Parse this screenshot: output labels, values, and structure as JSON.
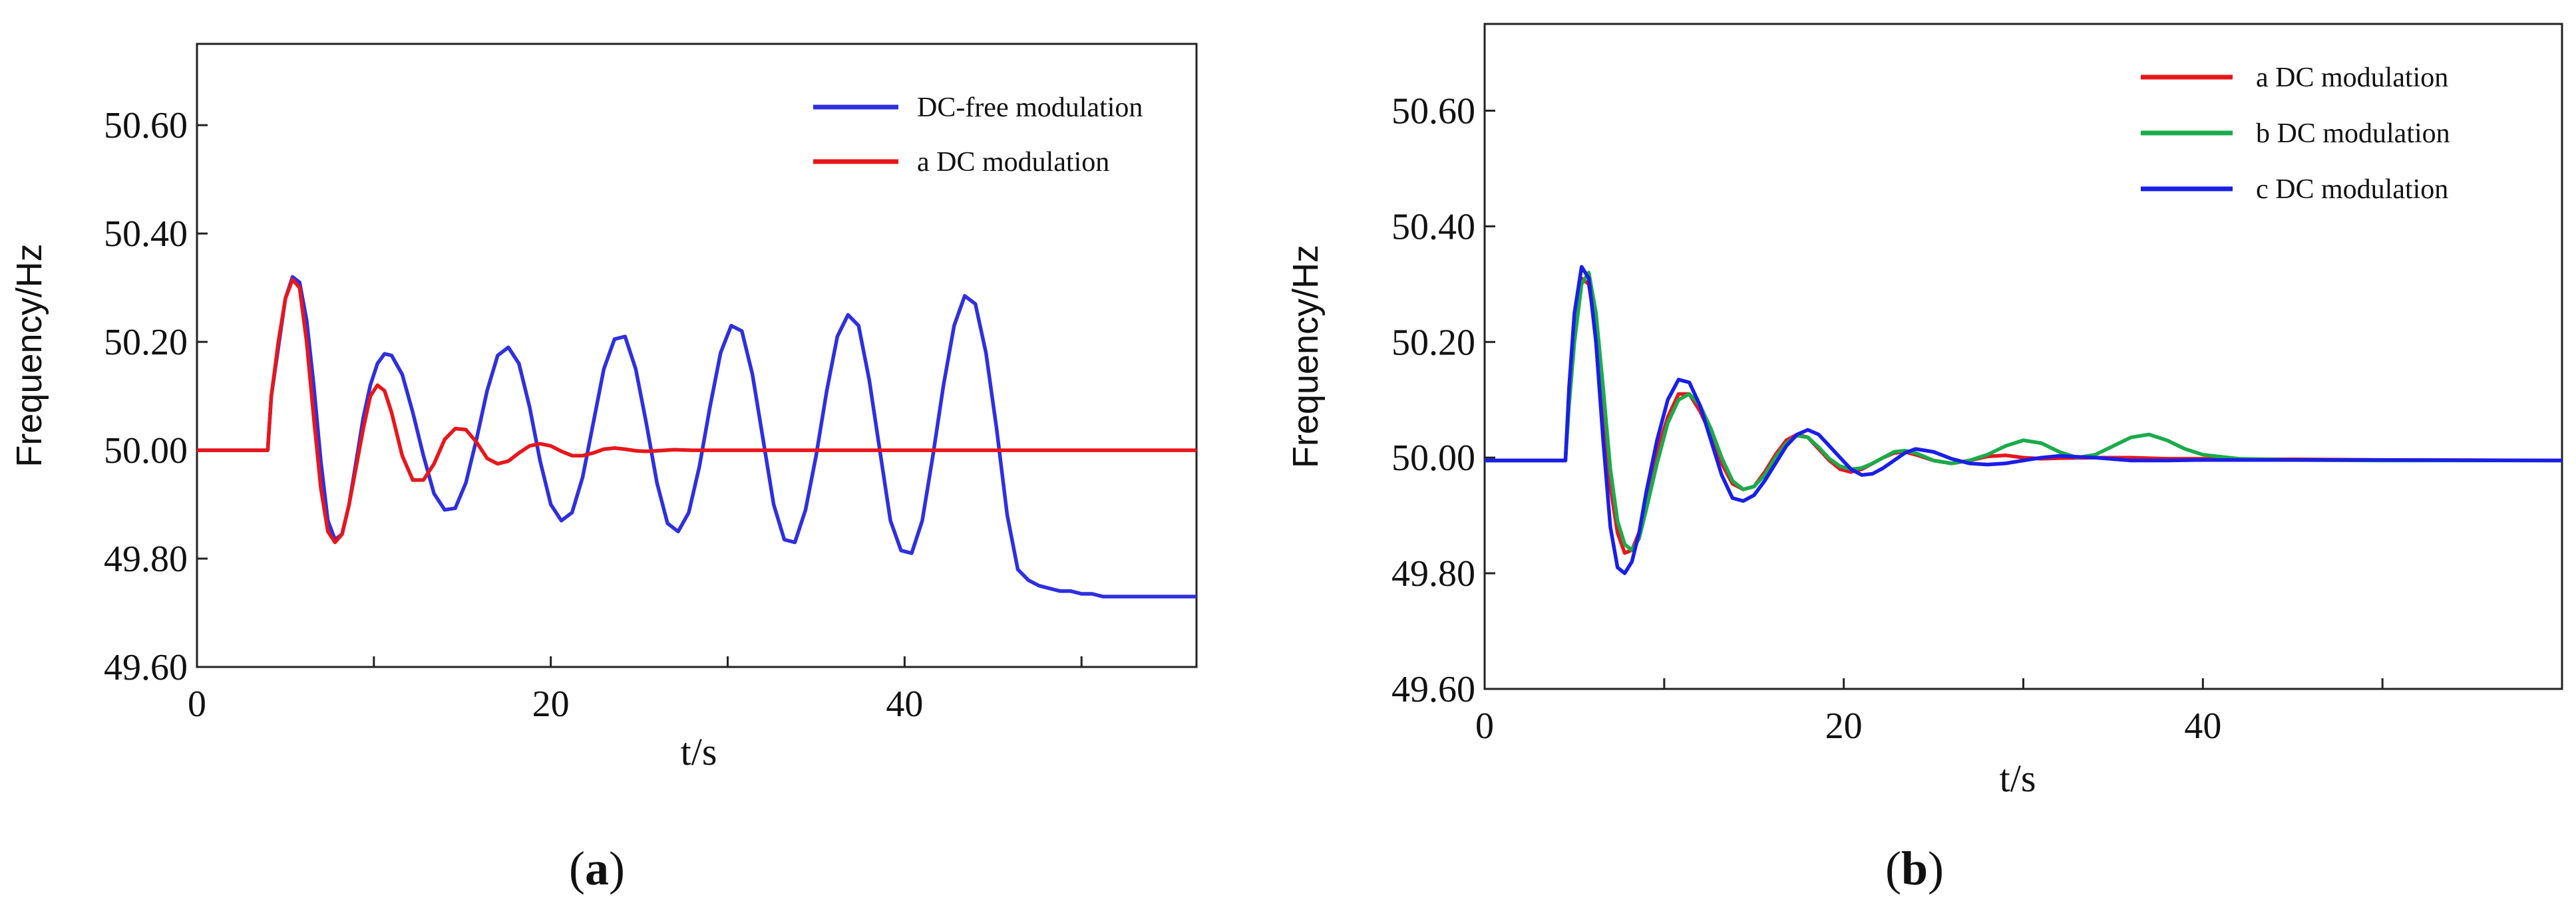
{
  "chart_data": [
    {
      "id": "a",
      "type": "line",
      "caption_open": "(",
      "caption_letter": "a",
      "caption_close": ")",
      "xlabel": "t/s",
      "ylabel": "Frequency/Hz",
      "xlim": [
        0,
        56.5
      ],
      "ylim": [
        49.6,
        50.75
      ],
      "xticks": [
        0,
        10,
        20,
        30,
        40,
        50
      ],
      "xtick_labels": [
        "0",
        "",
        "20",
        "",
        "40",
        ""
      ],
      "yticks": [
        49.6,
        49.8,
        50.0,
        50.2,
        50.4,
        50.6
      ],
      "ytick_labels": [
        "49.60",
        "49.80",
        "50.00",
        "50.20",
        "50.40",
        "50.60"
      ],
      "legend_position": "top-right",
      "series": [
        {
          "name": "DC-free modulation",
          "color": "#2f2fe0",
          "x": [
            0,
            4,
            4.2,
            4.6,
            5.0,
            5.4,
            5.8,
            6.2,
            6.6,
            7.0,
            7.4,
            7.8,
            8.2,
            8.6,
            9.0,
            9.4,
            9.8,
            10.2,
            10.6,
            11.0,
            11.6,
            12.2,
            12.8,
            13.4,
            14.0,
            14.6,
            15.2,
            15.8,
            16.4,
            17.0,
            17.6,
            18.2,
            18.8,
            19.4,
            20.0,
            20.6,
            21.2,
            21.8,
            22.4,
            23.0,
            23.6,
            24.2,
            24.8,
            25.4,
            26.0,
            26.6,
            27.2,
            27.8,
            28.4,
            29.0,
            29.6,
            30.2,
            30.8,
            31.4,
            32.0,
            32.6,
            33.2,
            33.8,
            34.4,
            35.0,
            35.6,
            36.2,
            36.8,
            37.4,
            38.0,
            38.6,
            39.2,
            39.8,
            40.4,
            41.0,
            41.6,
            42.2,
            42.8,
            43.4,
            44.0,
            44.6,
            45.2,
            45.8,
            46.4,
            47.0,
            47.6,
            48.2,
            48.8,
            49.4,
            50.0,
            50.6,
            51.2,
            51.8,
            52.4,
            53.0,
            53.6,
            54.2,
            54.8,
            55.4,
            56.0,
            56.5
          ],
          "y": [
            50.0,
            50.0,
            50.1,
            50.19,
            50.28,
            50.32,
            50.31,
            50.24,
            50.12,
            49.98,
            49.87,
            49.835,
            49.845,
            49.9,
            49.98,
            50.06,
            50.12,
            50.16,
            50.178,
            50.175,
            50.14,
            50.07,
            49.99,
            49.92,
            49.89,
            49.893,
            49.94,
            50.02,
            50.11,
            50.175,
            50.19,
            50.16,
            50.08,
            49.98,
            49.9,
            49.87,
            49.885,
            49.95,
            50.05,
            50.15,
            50.205,
            50.21,
            50.15,
            50.05,
            49.94,
            49.865,
            49.85,
            49.885,
            49.97,
            50.08,
            50.18,
            50.23,
            50.22,
            50.14,
            50.02,
            49.9,
            49.835,
            49.83,
            49.89,
            49.99,
            50.11,
            50.21,
            50.25,
            50.23,
            50.13,
            50.0,
            49.87,
            49.815,
            49.81,
            49.87,
            49.99,
            50.12,
            50.23,
            50.285,
            50.27,
            50.18,
            50.04,
            49.88,
            49.78,
            49.76,
            49.75,
            49.745,
            49.74,
            49.74,
            49.735,
            49.735,
            49.73,
            49.73,
            49.73,
            49.73,
            49.73,
            49.73,
            49.73,
            49.73,
            49.73,
            49.73
          ]
        },
        {
          "name": "a DC modulation",
          "color": "#e8161b",
          "x": [
            0,
            4,
            4.2,
            4.6,
            5.0,
            5.4,
            5.8,
            6.2,
            6.6,
            7.0,
            7.4,
            7.8,
            8.2,
            8.6,
            9.0,
            9.4,
            9.8,
            10.2,
            10.6,
            11.0,
            11.6,
            12.2,
            12.8,
            13.4,
            14.0,
            14.6,
            15.2,
            15.8,
            16.4,
            17.0,
            17.6,
            18.2,
            18.8,
            19.4,
            20.0,
            20.6,
            21.2,
            21.8,
            22.4,
            23.0,
            23.6,
            24.2,
            24.8,
            25.4,
            26.0,
            27.0,
            28.0,
            29.0,
            30.0,
            31.0,
            32.0,
            34.0,
            36.0,
            38.0,
            40.0,
            45.0,
            50.0,
            56.5
          ],
          "y": [
            50.0,
            50.0,
            50.1,
            50.2,
            50.28,
            50.315,
            50.3,
            50.2,
            50.06,
            49.93,
            49.85,
            49.83,
            49.845,
            49.9,
            49.97,
            50.04,
            50.1,
            50.12,
            50.11,
            50.07,
            49.99,
            49.945,
            49.945,
            49.975,
            50.02,
            50.04,
            50.038,
            50.015,
            49.985,
            49.975,
            49.98,
            49.995,
            50.008,
            50.012,
            50.008,
            49.998,
            49.99,
            49.99,
            49.995,
            50.002,
            50.004,
            50.002,
            49.999,
            49.998,
            49.999,
            50.001,
            50.0,
            50.0,
            50.0,
            50.0,
            50.0,
            50.0,
            50.0,
            50.0,
            50.0,
            50.0,
            50.0,
            50.0
          ]
        }
      ]
    },
    {
      "id": "b",
      "type": "line",
      "caption_open": "(",
      "caption_letter": "b",
      "caption_close": ")",
      "xlabel": "t/s",
      "ylabel": "Frequency/Hz",
      "xlim": [
        0,
        60
      ],
      "ylim": [
        49.6,
        50.75
      ],
      "xticks": [
        0,
        10,
        20,
        30,
        40,
        50
      ],
      "xtick_labels": [
        "0",
        "",
        "20",
        "",
        "40",
        ""
      ],
      "yticks": [
        49.6,
        49.8,
        50.0,
        50.2,
        50.4,
        50.6
      ],
      "ytick_labels": [
        "49.60",
        "49.80",
        "50.00",
        "50.20",
        "50.40",
        "50.60"
      ],
      "legend_position": "top-right",
      "series": [
        {
          "name": "a DC modulation",
          "color": "#e8161b",
          "x": [
            0,
            4.5,
            4.7,
            5.0,
            5.4,
            5.8,
            6.2,
            6.6,
            7.0,
            7.4,
            7.8,
            8.2,
            8.6,
            9.0,
            9.6,
            10.2,
            10.8,
            11.4,
            12.0,
            12.6,
            13.2,
            13.8,
            14.4,
            15.0,
            15.6,
            16.2,
            16.8,
            17.4,
            18.0,
            18.6,
            19.2,
            19.8,
            20.4,
            21.0,
            21.6,
            22.2,
            22.8,
            23.4,
            24.0,
            25.0,
            26.0,
            27.0,
            28.0,
            29.0,
            30.0,
            31.0,
            32.0,
            34.0,
            36.0,
            38.0,
            40.0,
            45.0,
            50.0,
            60.0
          ],
          "y": [
            49.995,
            49.995,
            50.1,
            50.22,
            50.31,
            50.3,
            50.22,
            50.08,
            49.95,
            49.87,
            49.835,
            49.84,
            49.87,
            49.93,
            50.01,
            50.07,
            50.11,
            50.11,
            50.08,
            50.04,
            49.99,
            49.955,
            49.945,
            49.95,
            49.975,
            50.005,
            50.03,
            50.04,
            50.035,
            50.015,
            49.995,
            49.98,
            49.975,
            49.98,
            49.99,
            50.0,
            50.008,
            50.01,
            50.005,
            49.995,
            49.99,
            49.995,
            50.002,
            50.004,
            50.0,
            49.998,
            49.999,
            50.0,
            50.0,
            49.998,
            49.998,
            49.997,
            49.996,
            49.995
          ]
        },
        {
          "name": "b DC modulation",
          "color": "#1aab4b",
          "x": [
            0,
            4.5,
            4.7,
            5.0,
            5.4,
            5.8,
            6.2,
            6.6,
            7.0,
            7.4,
            7.8,
            8.2,
            8.6,
            9.0,
            9.6,
            10.2,
            10.8,
            11.4,
            12.0,
            12.6,
            13.2,
            13.8,
            14.4,
            15.0,
            15.6,
            16.2,
            16.8,
            17.4,
            18.0,
            18.6,
            19.2,
            19.8,
            20.4,
            21.0,
            21.6,
            22.2,
            22.8,
            23.4,
            24.0,
            25.0,
            26.0,
            27.0,
            28.0,
            29.0,
            30.0,
            31.0,
            32.0,
            33.0,
            34.0,
            35.0,
            36.0,
            37.0,
            38.0,
            39.0,
            40.0,
            42.0,
            45.0,
            50.0,
            60.0
          ],
          "y": [
            49.995,
            49.995,
            50.09,
            50.2,
            50.3,
            50.32,
            50.25,
            50.12,
            49.98,
            49.89,
            49.85,
            49.84,
            49.86,
            49.91,
            49.99,
            50.06,
            50.1,
            50.11,
            50.09,
            50.05,
            50.0,
            49.96,
            49.945,
            49.95,
            49.97,
            50.0,
            50.025,
            50.038,
            50.035,
            50.018,
            49.998,
            49.985,
            49.98,
            49.982,
            49.99,
            50.0,
            50.01,
            50.012,
            50.008,
            49.995,
            49.99,
            49.995,
            50.005,
            50.02,
            50.03,
            50.025,
            50.01,
            50.0,
            50.005,
            50.02,
            50.035,
            50.04,
            50.03,
            50.015,
            50.005,
            49.998,
            49.996,
            49.995,
            49.995
          ]
        },
        {
          "name": "c DC modulation",
          "color": "#1a1ee8",
          "x": [
            0,
            4.5,
            4.7,
            5.0,
            5.4,
            5.8,
            6.2,
            6.6,
            7.0,
            7.4,
            7.8,
            8.2,
            8.6,
            9.0,
            9.6,
            10.2,
            10.8,
            11.4,
            12.0,
            12.6,
            13.2,
            13.8,
            14.4,
            15.0,
            15.6,
            16.2,
            16.8,
            17.4,
            18.0,
            18.6,
            19.2,
            19.8,
            20.4,
            21.0,
            21.6,
            22.2,
            22.8,
            23.4,
            24.0,
            25.0,
            26.0,
            27.0,
            28.0,
            29.0,
            30.0,
            31.0,
            32.0,
            34.0,
            36.0,
            38.0,
            40.0,
            45.0,
            50.0,
            60.0
          ],
          "y": [
            49.995,
            49.995,
            50.12,
            50.25,
            50.33,
            50.31,
            50.2,
            50.03,
            49.88,
            49.81,
            49.8,
            49.82,
            49.87,
            49.94,
            50.03,
            50.1,
            50.135,
            50.13,
            50.09,
            50.03,
            49.97,
            49.93,
            49.925,
            49.935,
            49.96,
            49.99,
            50.02,
            50.04,
            50.048,
            50.04,
            50.02,
            50.0,
            49.98,
            49.97,
            49.972,
            49.982,
            49.995,
            50.008,
            50.015,
            50.01,
            49.998,
            49.99,
            49.988,
            49.99,
            49.995,
            50.0,
            50.003,
            50.0,
            49.995,
            49.995,
            49.996,
            49.996,
            49.996,
            49.995
          ]
        }
      ]
    }
  ]
}
